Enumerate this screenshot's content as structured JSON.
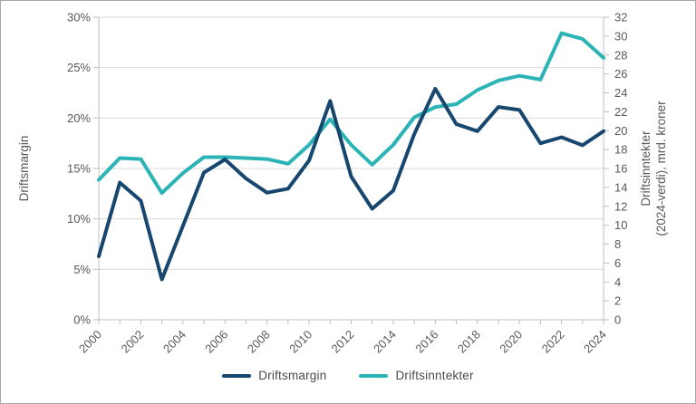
{
  "chart_data": {
    "type": "line",
    "title": "",
    "x_years": [
      2000,
      2001,
      2002,
      2003,
      2004,
      2005,
      2006,
      2007,
      2008,
      2009,
      2010,
      2011,
      2012,
      2013,
      2014,
      2015,
      2016,
      2017,
      2018,
      2019,
      2020,
      2021,
      2022,
      2023,
      2024
    ],
    "x_axis": {
      "tick_labels": [
        "2000",
        "2002",
        "2004",
        "2006",
        "2008",
        "2010",
        "2012",
        "2014",
        "2016",
        "2018",
        "2020",
        "2022",
        "2024"
      ],
      "label_every_n_years": 2,
      "tick_every_year": true,
      "label_rotation_deg": -45
    },
    "left_axis": {
      "title": "Driftsmargin",
      "min": 0,
      "max": 30,
      "step": 5,
      "tick_labels": [
        "0%",
        "5%",
        "10%",
        "15%",
        "20%",
        "25%",
        "30%"
      ]
    },
    "right_axis": {
      "title_lines": [
        "Driftsinntekter",
        "(2024-verdi), mrd. kroner"
      ],
      "min": 0,
      "max": 32,
      "step": 2,
      "tick_labels": [
        "0",
        "2",
        "4",
        "6",
        "8",
        "10",
        "12",
        "14",
        "16",
        "18",
        "20",
        "22",
        "24",
        "26",
        "28",
        "30",
        "32"
      ]
    },
    "series": [
      {
        "name": "Driftsmargin",
        "axis": "left",
        "color": "#17466E",
        "values": [
          6.3,
          13.6,
          11.8,
          4.0,
          9.3,
          14.6,
          15.9,
          14.0,
          12.6,
          13.0,
          15.8,
          21.7,
          14.2,
          11.0,
          12.8,
          18.4,
          22.9,
          19.4,
          18.7,
          21.1,
          20.8,
          17.5,
          18.1,
          17.3,
          18.7
        ]
      },
      {
        "name": "Driftsinntekter",
        "axis": "right",
        "color": "#2BB3B5",
        "values": [
          14.8,
          17.1,
          17.0,
          13.4,
          15.5,
          17.2,
          17.2,
          17.1,
          17.0,
          16.5,
          18.5,
          21.2,
          18.5,
          16.4,
          18.5,
          21.4,
          22.5,
          22.8,
          24.3,
          25.3,
          25.8,
          25.4,
          30.3,
          29.7,
          27.7
        ]
      }
    ],
    "grid": true,
    "legend_position": "bottom"
  },
  "styles": {
    "tick_text_color": "#595959",
    "axis_title_color": "#595959",
    "legend_text_color": "#4a4a4a",
    "grid_color": "#D9D9D9",
    "axis_line_color": "#BFBFBF",
    "frame_border_color": "#A6A6A6",
    "background": "#FFFFFF"
  }
}
